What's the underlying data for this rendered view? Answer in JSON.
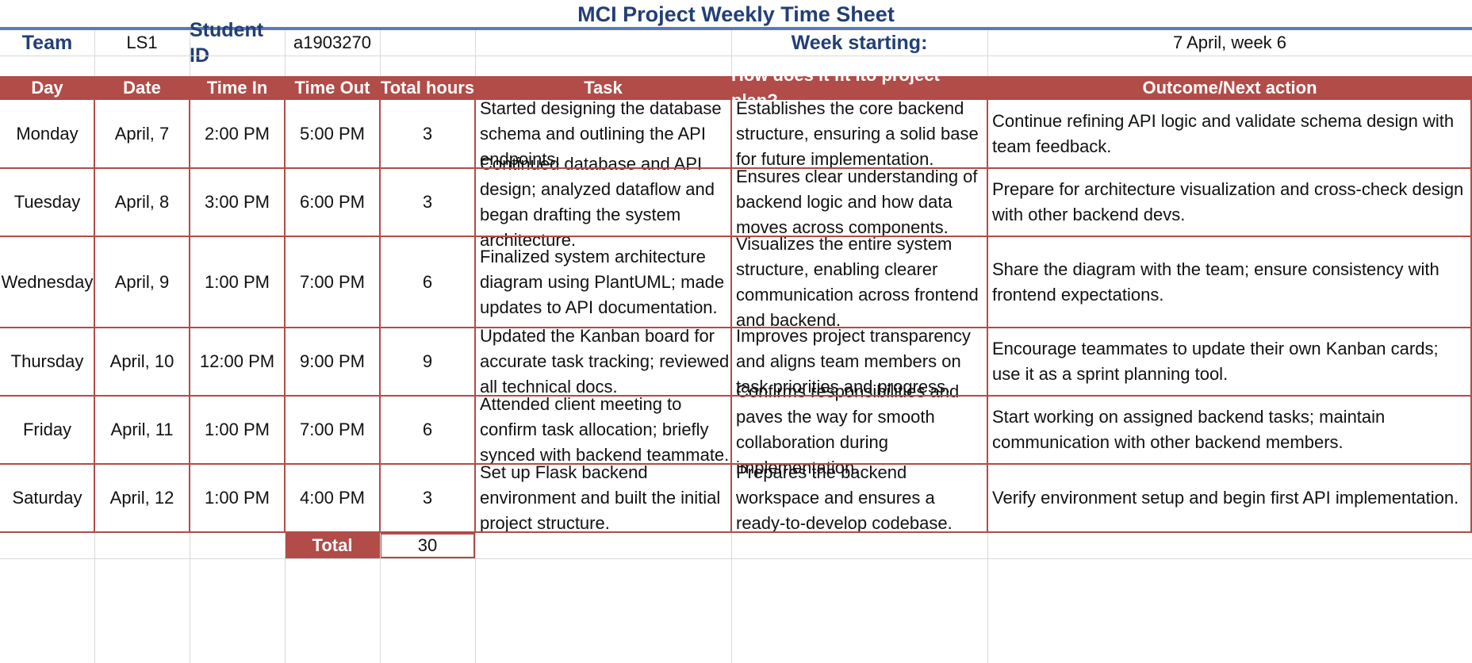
{
  "sheet": {
    "title": "MCI Project Weekly Time Sheet",
    "team_label": "Team",
    "team_value": "LS1",
    "student_id_label": "Student ID",
    "student_id_value": "a1903270",
    "week_label": "Week starting:",
    "week_value": "7 April, week 6"
  },
  "table": {
    "headers": [
      "Day",
      "Date",
      "Time In",
      "Time Out",
      "Total hours",
      "Task",
      "How does it fit ito project plan?",
      "Outcome/Next action"
    ],
    "rows": [
      {
        "day": "Monday",
        "date": "April, 7",
        "time_in": "2:00 PM",
        "time_out": "5:00 PM",
        "hours": "3",
        "task": "Started designing the database schema and outlining the API endpoints.",
        "fit": "Establishes the core backend structure, ensuring a solid base for future implementation.",
        "outcome": "Continue refining API logic and validate schema design with team feedback."
      },
      {
        "day": "Tuesday",
        "date": "April, 8",
        "time_in": "3:00 PM",
        "time_out": "6:00 PM",
        "hours": "3",
        "task": "Continued database and API design; analyzed dataflow and began drafting the system architecture.",
        "fit": "Ensures clear understanding of backend logic and how data moves across components.",
        "outcome": "Prepare for architecture visualization and cross-check design with other backend devs."
      },
      {
        "day": "Wednesday",
        "date": "April, 9",
        "time_in": "1:00 PM",
        "time_out": "7:00 PM",
        "hours": "6",
        "task": "Finalized system architecture diagram using PlantUML; made updates to API documentation.",
        "fit": "Visualizes the entire system structure, enabling clearer communication across frontend and backend.",
        "outcome": "Share the diagram with the team; ensure consistency with frontend expectations."
      },
      {
        "day": "Thursday",
        "date": "April, 10",
        "time_in": "12:00 PM",
        "time_out": "9:00 PM",
        "hours": "9",
        "task": "Updated the Kanban board for accurate task tracking; reviewed all technical docs.",
        "fit": "Improves project transparency and aligns team members on task priorities and progress.",
        "outcome": "Encourage teammates to update their own Kanban cards; use it as a sprint planning tool."
      },
      {
        "day": "Friday",
        "date": "April, 11",
        "time_in": "1:00 PM",
        "time_out": "7:00 PM",
        "hours": "6",
        "task": "Attended client meeting to confirm task allocation; briefly synced with backend teammate.",
        "fit": "Confirms responsibilities and paves the way for smooth collaboration during implementation.",
        "outcome": "Start working on assigned backend tasks; maintain communication with other backend members."
      },
      {
        "day": "Saturday",
        "date": "April, 12",
        "time_in": "1:00 PM",
        "time_out": "4:00 PM",
        "hours": "3",
        "task": "Set up Flask backend environment and built the initial project structure.",
        "fit": "Prepares the backend workspace and ensures a ready-to-develop codebase.",
        "outcome": "Verify environment setup and begin first API implementation."
      }
    ],
    "total_label": "Total",
    "total_value": "30"
  },
  "colors": {
    "header_fill": "#b14c48",
    "title_text": "#223f75",
    "title_rule": "#5a7bb5"
  }
}
